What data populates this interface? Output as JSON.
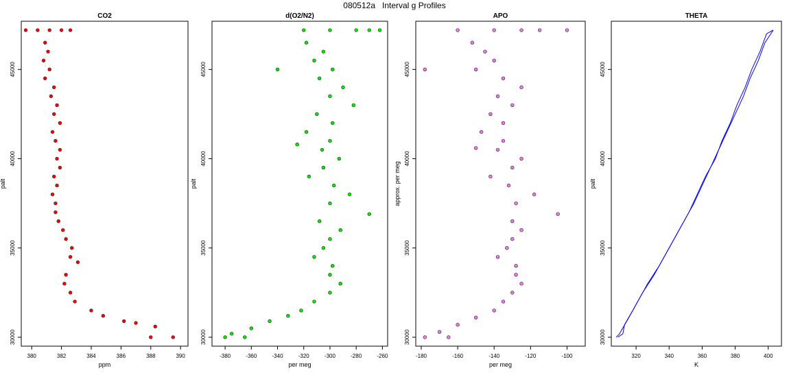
{
  "figure": {
    "title": "080512a   Interval g Profiles"
  },
  "chart_data": [
    {
      "type": "scatter",
      "title": "CO2",
      "xlabel": "ppm",
      "ylabel": "palt",
      "xlim": [
        379.3,
        390.5
      ],
      "ylim": [
        29500,
        47700
      ],
      "xticks": [
        380,
        382,
        384,
        386,
        388,
        390
      ],
      "yticks": [
        30000,
        35000,
        40000,
        45000
      ],
      "series": [
        {
          "color": "#ff0000",
          "points": [
            [
              379.6,
              47200
            ],
            [
              380.4,
              47200
            ],
            [
              381.2,
              47200
            ],
            [
              382.0,
              47200
            ],
            [
              382.6,
              47200
            ],
            [
              380.9,
              46500
            ],
            [
              381.1,
              46000
            ],
            [
              380.8,
              45500
            ],
            [
              381.2,
              45000
            ],
            [
              380.9,
              44500
            ],
            [
              381.5,
              44000
            ],
            [
              381.3,
              43500
            ],
            [
              381.7,
              43000
            ],
            [
              381.5,
              42500
            ],
            [
              381.9,
              42000
            ],
            [
              381.4,
              41500
            ],
            [
              381.6,
              41000
            ],
            [
              381.9,
              40500
            ],
            [
              381.7,
              40000
            ],
            [
              381.9,
              39500
            ],
            [
              381.5,
              39000
            ],
            [
              381.7,
              38500
            ],
            [
              381.4,
              38000
            ],
            [
              381.6,
              37500
            ],
            [
              381.6,
              37000
            ],
            [
              381.8,
              36500
            ],
            [
              382.1,
              36000
            ],
            [
              382.3,
              35500
            ],
            [
              382.7,
              35000
            ],
            [
              382.6,
              34500
            ],
            [
              383.1,
              34200
            ],
            [
              382.3,
              33500
            ],
            [
              382.2,
              33000
            ],
            [
              382.6,
              32500
            ],
            [
              382.9,
              32000
            ],
            [
              384.0,
              31500
            ],
            [
              384.8,
              31200
            ],
            [
              386.2,
              30900
            ],
            [
              387.0,
              30800
            ],
            [
              388.3,
              30600
            ],
            [
              388.0,
              30000
            ],
            [
              389.5,
              30000
            ]
          ]
        }
      ]
    },
    {
      "type": "scatter",
      "title": "d(O2/N2)",
      "xlabel": "per meg",
      "ylabel": "palt",
      "xlim": [
        -390,
        -256
      ],
      "ylim": [
        29500,
        47700
      ],
      "xticks": [
        -380,
        -360,
        -340,
        -320,
        -300,
        -280,
        -260
      ],
      "yticks": [
        30000,
        35000,
        40000,
        45000
      ],
      "series": [
        {
          "color": "#00ee00",
          "points": [
            [
              -320,
              47200
            ],
            [
              -300,
              47200
            ],
            [
              -280,
              47200
            ],
            [
              -270,
              47200
            ],
            [
              -262,
              47200
            ],
            [
              -318,
              46500
            ],
            [
              -305,
              46000
            ],
            [
              -312,
              45500
            ],
            [
              -298,
              45000
            ],
            [
              -340,
              45000
            ],
            [
              -308,
              44500
            ],
            [
              -290,
              44000
            ],
            [
              -300,
              43500
            ],
            [
              -282,
              43000
            ],
            [
              -310,
              42500
            ],
            [
              -298,
              42000
            ],
            [
              -318,
              41500
            ],
            [
              -300,
              41000
            ],
            [
              -325,
              40800
            ],
            [
              -306,
              40500
            ],
            [
              -293,
              40000
            ],
            [
              -305,
              39500
            ],
            [
              -316,
              39000
            ],
            [
              -297,
              38500
            ],
            [
              -285,
              38000
            ],
            [
              -300,
              37500
            ],
            [
              -270,
              36900
            ],
            [
              -308,
              36500
            ],
            [
              -292,
              36000
            ],
            [
              -300,
              35500
            ],
            [
              -305,
              35000
            ],
            [
              -312,
              34500
            ],
            [
              -298,
              34000
            ],
            [
              -300,
              33500
            ],
            [
              -292,
              33000
            ],
            [
              -300,
              32500
            ],
            [
              -312,
              32000
            ],
            [
              -322,
              31500
            ],
            [
              -332,
              31200
            ],
            [
              -346,
              30900
            ],
            [
              -360,
              30500
            ],
            [
              -375,
              30200
            ],
            [
              -380,
              30000
            ],
            [
              -365,
              30000
            ]
          ]
        }
      ]
    },
    {
      "type": "scatter",
      "title": "APO",
      "xlabel": "per meg",
      "ylabel": "approx. per meg",
      "xlim": [
        -183,
        -90
      ],
      "ylim": [
        29500,
        47700
      ],
      "xticks": [
        -180,
        -160,
        -140,
        -120,
        -100
      ],
      "yticks": [
        30000,
        35000,
        40000,
        45000
      ],
      "series": [
        {
          "color": "#ee77ee",
          "points": [
            [
              -160,
              47200
            ],
            [
              -140,
              47200
            ],
            [
              -125,
              47200
            ],
            [
              -115,
              47200
            ],
            [
              -100,
              47200
            ],
            [
              -152,
              46500
            ],
            [
              -145,
              46000
            ],
            [
              -140,
              45500
            ],
            [
              -150,
              45000
            ],
            [
              -178,
              45000
            ],
            [
              -135,
              44500
            ],
            [
              -125,
              44000
            ],
            [
              -138,
              43500
            ],
            [
              -130,
              43000
            ],
            [
              -142,
              42500
            ],
            [
              -135,
              42000
            ],
            [
              -147,
              41500
            ],
            [
              -135,
              41000
            ],
            [
              -150,
              40600
            ],
            [
              -138,
              40500
            ],
            [
              -125,
              40000
            ],
            [
              -130,
              39500
            ],
            [
              -142,
              39000
            ],
            [
              -132,
              38500
            ],
            [
              -118,
              38000
            ],
            [
              -128,
              37500
            ],
            [
              -105,
              36900
            ],
            [
              -130,
              36500
            ],
            [
              -125,
              36000
            ],
            [
              -130,
              35500
            ],
            [
              -133,
              35000
            ],
            [
              -138,
              34500
            ],
            [
              -128,
              34000
            ],
            [
              -128,
              33500
            ],
            [
              -125,
              33000
            ],
            [
              -130,
              32500
            ],
            [
              -135,
              32000
            ],
            [
              -140,
              31500
            ],
            [
              -150,
              31100
            ],
            [
              -160,
              30700
            ],
            [
              -170,
              30300
            ],
            [
              -178,
              30000
            ],
            [
              -165,
              30000
            ]
          ]
        }
      ]
    },
    {
      "type": "line",
      "title": "THETA",
      "xlabel": "K",
      "ylabel": "palt",
      "xlim": [
        305,
        408
      ],
      "ylim": [
        29500,
        47700
      ],
      "xticks": [
        320,
        340,
        360,
        380,
        400
      ],
      "yticks": [
        30000,
        35000,
        40000,
        45000
      ],
      "series": [
        {
          "color": "#0000ff",
          "points": [
            [
              308,
              30000
            ],
            [
              310,
              30200
            ],
            [
              315,
              31000
            ],
            [
              321,
              32000
            ],
            [
              327,
              33000
            ],
            [
              334,
              34000
            ],
            [
              340,
              35000
            ],
            [
              346,
              36000
            ],
            [
              352,
              37000
            ],
            [
              357,
              38000
            ],
            [
              362,
              39000
            ],
            [
              368,
              40000
            ],
            [
              372,
              41000
            ],
            [
              377,
              42000
            ],
            [
              381,
              43000
            ],
            [
              386,
              44000
            ],
            [
              390,
              45000
            ],
            [
              395,
              46000
            ],
            [
              399,
              47000
            ],
            [
              403,
              47200
            ]
          ]
        },
        {
          "color": "#0000ff",
          "points": [
            [
              403,
              47200
            ],
            [
              398,
              46500
            ],
            [
              394,
              45500
            ],
            [
              389,
              44500
            ],
            [
              385,
              43500
            ],
            [
              380,
              42500
            ],
            [
              375,
              41500
            ],
            [
              370,
              40500
            ],
            [
              365,
              39500
            ],
            [
              360,
              38500
            ],
            [
              355,
              37500
            ],
            [
              349,
              36500
            ],
            [
              343,
              35500
            ],
            [
              337,
              34500
            ],
            [
              331,
              33500
            ],
            [
              324,
              32500
            ],
            [
              318,
              31500
            ],
            [
              313,
              30700
            ],
            [
              312,
              30200
            ],
            [
              309,
              30000
            ]
          ]
        }
      ]
    }
  ]
}
